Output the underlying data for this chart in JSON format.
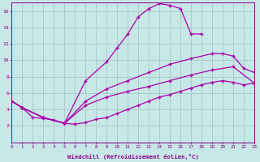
{
  "bg_color": "#c8e8e8",
  "grid_color": "#a8c8c8",
  "line_color": "#aa00aa",
  "marker_color": "#aa00aa",
  "xlabel": "Windchill (Refroidissement éolien,°C)",
  "xlabel_color": "#880088",
  "tick_color": "#880088",
  "xmin": 0,
  "xmax": 23,
  "ymin": 0,
  "ymax": 17,
  "yticks": [
    2,
    4,
    6,
    8,
    10,
    12,
    14,
    16
  ],
  "xticks": [
    0,
    1,
    2,
    3,
    4,
    5,
    6,
    7,
    8,
    9,
    10,
    11,
    12,
    13,
    14,
    15,
    16,
    17,
    18,
    19,
    20,
    21,
    22,
    23
  ],
  "lines": [
    {
      "x": [
        0,
        1,
        3,
        5,
        7,
        9,
        10,
        11,
        12,
        13,
        14,
        15,
        16,
        17,
        18
      ],
      "y": [
        5.0,
        4.2,
        3.0,
        2.3,
        7.5,
        9.8,
        11.5,
        13.2,
        15.3,
        16.3,
        16.9,
        16.7,
        16.3,
        13.2,
        13.2
      ]
    },
    {
      "x": [
        0,
        1,
        3,
        5,
        7,
        9,
        11,
        13,
        15,
        17,
        19,
        20,
        21,
        22,
        23
      ],
      "y": [
        5.0,
        4.2,
        3.0,
        2.3,
        5.0,
        6.5,
        7.5,
        8.5,
        9.5,
        10.2,
        10.8,
        10.8,
        10.5,
        9.0,
        8.5
      ]
    },
    {
      "x": [
        0,
        1,
        3,
        5,
        7,
        9,
        11,
        13,
        15,
        17,
        19,
        21,
        23
      ],
      "y": [
        5.0,
        4.2,
        3.0,
        2.3,
        4.5,
        5.5,
        6.2,
        6.8,
        7.5,
        8.2,
        8.8,
        9.2,
        7.2
      ]
    },
    {
      "x": [
        0,
        1,
        2,
        3,
        4,
        5,
        6,
        7,
        8,
        9,
        10,
        11,
        12,
        13,
        14,
        15,
        16,
        17,
        18,
        19,
        20,
        21,
        22,
        23
      ],
      "y": [
        5.0,
        4.2,
        3.0,
        2.9,
        2.7,
        2.3,
        2.2,
        2.4,
        2.8,
        3.0,
        3.5,
        4.0,
        4.5,
        5.0,
        5.5,
        5.8,
        6.2,
        6.6,
        7.0,
        7.3,
        7.5,
        7.3,
        7.0,
        7.2
      ]
    }
  ]
}
